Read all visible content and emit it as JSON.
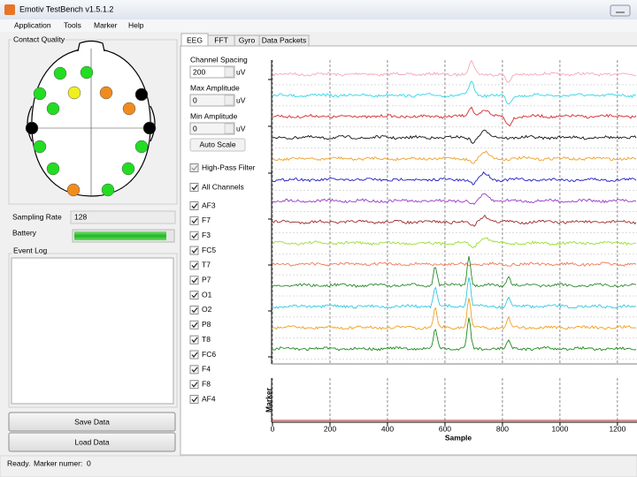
{
  "window": {
    "title": "Emotiv TestBench v1.5.1.2"
  },
  "menu": [
    "Application",
    "Tools",
    "Marker",
    "Help"
  ],
  "contact_quality": {
    "title": "Contact Quality",
    "sensors": [
      {
        "color": "#22dd22"
      },
      {
        "color": "#22dd22"
      },
      {
        "color": "#22dd22"
      },
      {
        "color": "#f0f020"
      },
      {
        "color": "#f08c1e"
      },
      {
        "color": "#000000"
      },
      {
        "color": "#22dd22"
      },
      {
        "color": "#f08c1e"
      },
      {
        "color": "#000000"
      },
      {
        "color": "#000000"
      },
      {
        "color": "#22dd22"
      },
      {
        "color": "#22dd22"
      },
      {
        "color": "#22dd22"
      },
      {
        "color": "#22dd22"
      },
      {
        "color": "#f08c1e"
      },
      {
        "color": "#22dd22"
      }
    ]
  },
  "sampling_rate": {
    "label": "Sampling Rate",
    "value": "128"
  },
  "battery": {
    "label": "Battery"
  },
  "event_log": {
    "title": "Event Log"
  },
  "buttons": [
    "Save Data",
    "Load Data"
  ],
  "tabs": [
    "EEG",
    "FFT",
    "Gyro",
    "Data Packets"
  ],
  "controls": {
    "channel_spacing": {
      "label": "Channel Spacing",
      "value": "200",
      "unit": "uV"
    },
    "max_amplitude": {
      "label": "Max Amplitude",
      "value": "0",
      "unit": "uV"
    },
    "min_amplitude": {
      "label": "Min Amplitude",
      "value": "0",
      "unit": "uV"
    },
    "auto_scale": "Auto Scale",
    "high_pass": "High-Pass Filter",
    "all_channels": "All Channels"
  },
  "channels": [
    {
      "name": "AF3",
      "color": "#f4a8b8"
    },
    {
      "name": "F7",
      "color": "#33d6e8"
    },
    {
      "name": "F3",
      "color": "#d4282c"
    },
    {
      "name": "FC5",
      "color": "#111111"
    },
    {
      "name": "T7",
      "color": "#f0a028"
    },
    {
      "name": "P7",
      "color": "#1c1cc8"
    },
    {
      "name": "O1",
      "color": "#9a3cc8"
    },
    {
      "name": "O2",
      "color": "#a02828"
    },
    {
      "name": "P8",
      "color": "#98e030"
    },
    {
      "name": "T8",
      "color": "#f07858"
    },
    {
      "name": "FC6",
      "color": "#2a8a2a"
    },
    {
      "name": "F4",
      "color": "#33c8e0"
    },
    {
      "name": "F8",
      "color": "#f0a020"
    },
    {
      "name": "AF4",
      "color": "#1e8c1e"
    }
  ],
  "plot": {
    "xlabel": "Sample",
    "marker_label": "Marker",
    "xlim": [
      0,
      1268
    ],
    "xticks": [
      0,
      200,
      400,
      600,
      800,
      1000,
      1200
    ]
  },
  "status": {
    "text": "Ready.",
    "marker_label": "Marker numer:",
    "marker_value": "0"
  }
}
